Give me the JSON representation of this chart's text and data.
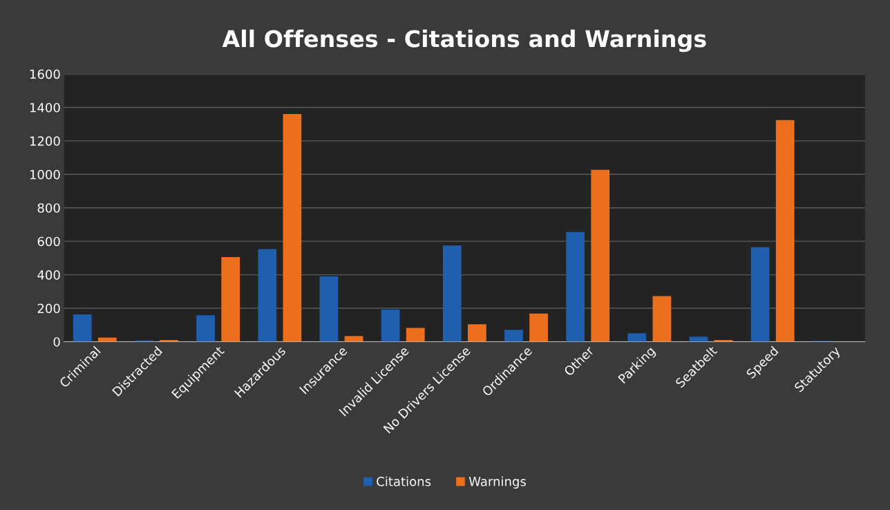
{
  "chart_data": {
    "type": "bar",
    "title": "All Offenses - Citations and Warnings",
    "categories": [
      "Criminal",
      "Distracted",
      "Equipment",
      "Hazardous",
      "Insurance",
      "Invalid License",
      "No Drivers License",
      "Ordinance",
      "Other",
      "Parking",
      "Seatbelt",
      "Speed",
      "Statutory"
    ],
    "series": [
      {
        "name": "Citations",
        "color": "#1f5fae",
        "values": [
          163,
          7,
          158,
          553,
          390,
          192,
          575,
          71,
          655,
          50,
          30,
          565,
          5
        ]
      },
      {
        "name": "Warnings",
        "color": "#ec6f1e",
        "values": [
          25,
          10,
          506,
          1361,
          34,
          82,
          104,
          168,
          1027,
          272,
          10,
          1324,
          0
        ]
      }
    ],
    "ylim": [
      0,
      1600
    ],
    "yticks": [
      0,
      200,
      400,
      600,
      800,
      1000,
      1200,
      1400,
      1600
    ],
    "grid": "y",
    "legend": "bottom"
  }
}
